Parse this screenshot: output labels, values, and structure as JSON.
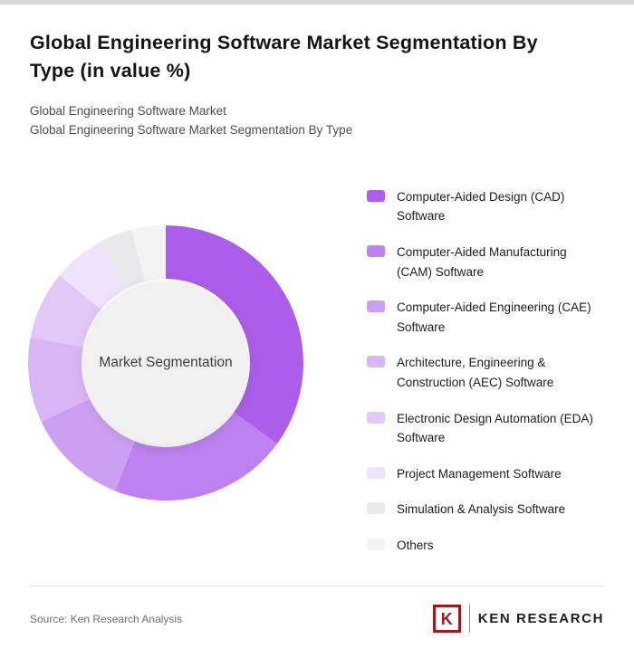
{
  "header": {
    "title": "Global Engineering Software Market Segmentation By Type (in value %)",
    "subtitle1": "Global Engineering Software Market",
    "subtitle2": "Global Engineering Software Market Segmentation By Type"
  },
  "chart_data": {
    "type": "pie",
    "subtype": "donut",
    "title": "Global Engineering Software Market Segmentation By Type (in value %)",
    "center_label": "Market Segmentation",
    "categories": [
      "Computer-Aided Design (CAD) Software",
      "Computer-Aided Manufacturing (CAM) Software",
      "Computer-Aided Engineering (CAE) Software",
      "Architecture, Engineering & Construction (AEC) Software",
      "Electronic Design Automation (EDA) Software",
      "Project Management Software",
      "Simulation & Analysis Software",
      "Others"
    ],
    "values": [
      35,
      21,
      12,
      10,
      8,
      6,
      4,
      4
    ],
    "unit": "% (estimated from arc angles; no data labels shown)",
    "colors": [
      "#ac5de9",
      "#bd82ef",
      "#cba0f3",
      "#d8b6f6",
      "#e2c8f9",
      "#efe2fc",
      "#e9e9eb",
      "#f3f3f4"
    ],
    "legend_position": "right",
    "start_angle_deg": 0,
    "direction": "clockwise",
    "center_fill": "#f0f0f0"
  },
  "footer": {
    "source": "Source: Ken Research Analysis",
    "logo_letter": "K",
    "logo_text": "KEN RESEARCH",
    "logo_color": "#9a1b1e"
  }
}
